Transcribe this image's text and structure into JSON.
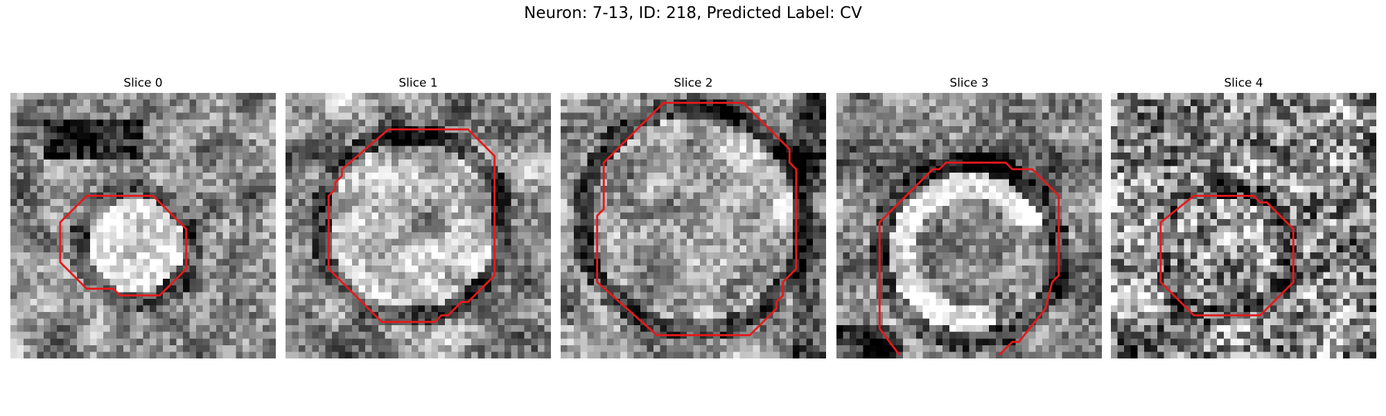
{
  "figure": {
    "title": "Neuron: 7-13, ID: 218, Predicted Label: CV"
  },
  "panels": [
    {
      "title": "Slice 0",
      "pattern": "bright-blob-dark-top",
      "outline_points": [
        [
          11.5,
          15.5
        ],
        [
          21.5,
          15.5
        ],
        [
          26.5,
          20.5
        ],
        [
          26.5,
          26.5
        ],
        [
          22.5,
          30.5
        ],
        [
          16.5,
          30.5
        ],
        [
          15.5,
          29.5
        ],
        [
          11.5,
          29.5
        ],
        [
          7.5,
          25.5
        ],
        [
          7.5,
          19.5
        ]
      ]
    },
    {
      "title": "Slice 1",
      "pattern": "ring-large",
      "outline_points": [
        [
          15.5,
          5.5
        ],
        [
          27.5,
          5.5
        ],
        [
          30.5,
          8.5
        ],
        [
          31.5,
          9.5
        ],
        [
          31.5,
          27.5
        ],
        [
          27.5,
          31.5
        ],
        [
          26.5,
          31.5
        ],
        [
          24.5,
          33.5
        ],
        [
          23.5,
          33.5
        ],
        [
          22.5,
          34.5
        ],
        [
          14.5,
          34.5
        ],
        [
          6.5,
          26.5
        ],
        [
          6.5,
          15.5
        ],
        [
          7.5,
          14.5
        ],
        [
          7.5,
          13.5
        ],
        [
          8.5,
          12.5
        ],
        [
          8.5,
          11.5
        ]
      ]
    },
    {
      "title": "Slice 2",
      "pattern": "ring-dark-frame",
      "outline_points": [
        [
          15.5,
          1.5
        ],
        [
          27.5,
          1.5
        ],
        [
          34.5,
          8.5
        ],
        [
          34.5,
          10.5
        ],
        [
          35.5,
          11.5
        ],
        [
          35.5,
          26.5
        ],
        [
          33.5,
          28.5
        ],
        [
          33.5,
          30.5
        ],
        [
          32.5,
          31.5
        ],
        [
          32.5,
          32.5
        ],
        [
          28.5,
          36.5
        ],
        [
          14.5,
          36.5
        ],
        [
          5.5,
          28.5
        ],
        [
          5.5,
          18.5
        ],
        [
          6.5,
          17.5
        ],
        [
          6.5,
          10.5
        ]
      ]
    },
    {
      "title": "Slice 3",
      "pattern": "bright-crescent-dark-edges",
      "outline_points": [
        [
          6.5,
          35.5
        ],
        [
          9.5,
          39.5
        ],
        [
          null,
          null
        ],
        [
          24.5,
          39.5
        ],
        [
          26.5,
          37.5
        ],
        [
          27.5,
          37.5
        ],
        [
          31.5,
          32.5
        ],
        [
          32.5,
          28.5
        ],
        [
          33.5,
          27.5
        ],
        [
          33.5,
          15.5
        ],
        [
          29.5,
          11.5
        ],
        [
          26.5,
          11.5
        ],
        [
          25.5,
          10.5
        ],
        [
          16.5,
          10.5
        ],
        [
          15.5,
          11.5
        ],
        [
          14.5,
          11.5
        ],
        [
          13.5,
          12.5
        ],
        [
          6.5,
          19.5
        ],
        [
          6.5,
          35.5
        ]
      ]
    },
    {
      "title": "Slice 4",
      "pattern": "noisy-small-ring",
      "outline_points": [
        [
          12.5,
          15.5
        ],
        [
          21.5,
          15.5
        ],
        [
          22.5,
          16.5
        ],
        [
          23.5,
          16.5
        ],
        [
          27.5,
          20.5
        ],
        [
          27.5,
          28.5
        ],
        [
          22.5,
          33.5
        ],
        [
          12.5,
          33.5
        ],
        [
          7.5,
          28.5
        ],
        [
          7.5,
          19.5
        ]
      ]
    }
  ],
  "colors": {
    "outline": "#e41a1c",
    "background": "#ffffff"
  }
}
